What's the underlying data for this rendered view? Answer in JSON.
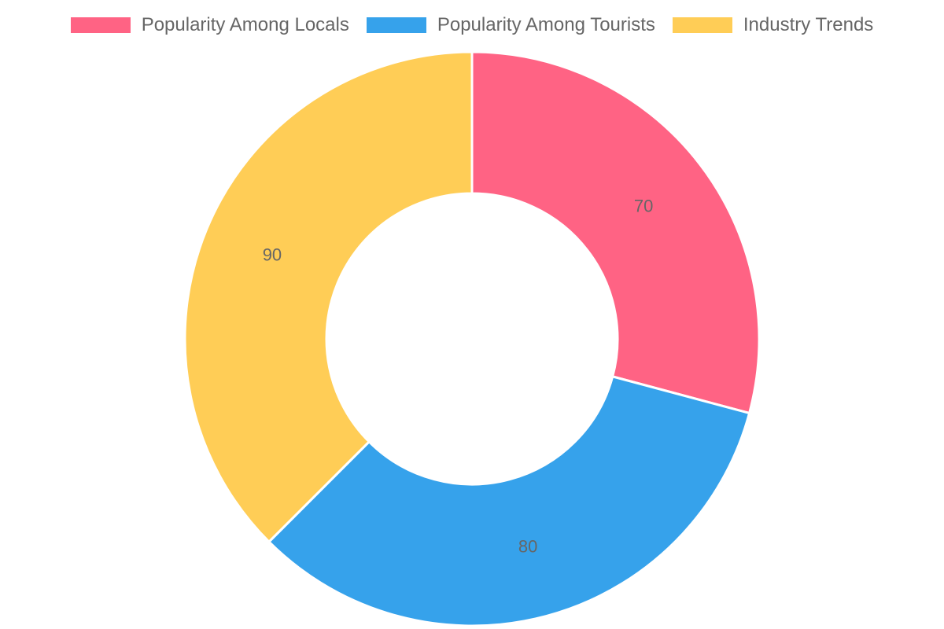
{
  "chart_data": {
    "type": "doughnut",
    "categories": [
      "Popularity Among Locals",
      "Popularity Among Tourists",
      "Industry Trends"
    ],
    "values": [
      70,
      80,
      90
    ],
    "colors": [
      "#ff6384",
      "#36a2eb",
      "#ffcd56"
    ],
    "legend_position": "top",
    "data_labels": [
      "70",
      "80",
      "90"
    ]
  }
}
